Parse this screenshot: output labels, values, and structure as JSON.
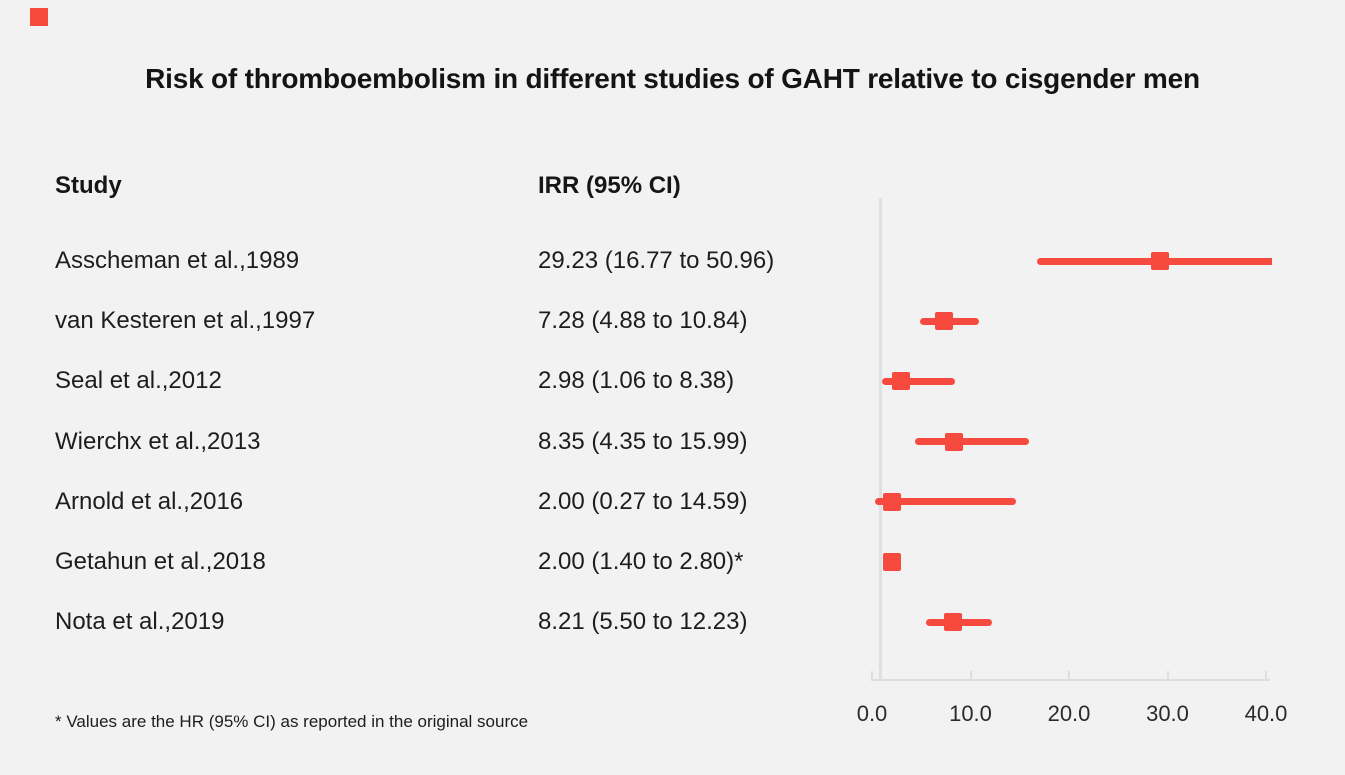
{
  "brand": {
    "square_color": "#f64a3e"
  },
  "title": "Risk of thromboembolism in different studies of GAHT relative to cisgender men",
  "table": {
    "study_header": "Study",
    "irr_header": "IRR (95% CI)"
  },
  "footnote": "* Values are the HR (95% CI) as reported in the original source",
  "chart_data": {
    "type": "forest",
    "title": "Risk of thromboembolism in different studies of GAHT relative to cisgender men",
    "xlabel": "",
    "ylabel": "",
    "xlim": [
      0,
      40
    ],
    "x_tick_values": [
      0,
      10,
      20,
      30,
      40
    ],
    "x_tick_labels": [
      "0.0",
      "10.0",
      "20.0",
      "30.0",
      "40.0"
    ],
    "reference_line": 1.0,
    "grid": false,
    "legend_position": "none",
    "studies": [
      {
        "label": "Asscheman et al.,1989",
        "irr_text": "29.23 (16.77 to 50.96)",
        "irr": 29.23,
        "ci_low": 16.77,
        "ci_high": 50.96
      },
      {
        "label": "van Kesteren et al.,1997",
        "irr_text": "7.28 (4.88 to 10.84)",
        "irr": 7.28,
        "ci_low": 4.88,
        "ci_high": 10.84
      },
      {
        "label": "Seal et al.,2012",
        "irr_text": "2.98 (1.06 to 8.38)",
        "irr": 2.98,
        "ci_low": 1.06,
        "ci_high": 8.38
      },
      {
        "label": "Wierchx et al.,2013",
        "irr_text": "8.35 (4.35 to 15.99)",
        "irr": 8.35,
        "ci_low": 4.35,
        "ci_high": 15.99
      },
      {
        "label": "Arnold et al.,2016",
        "irr_text": "2.00 (0.27 to 14.59)",
        "irr": 2.0,
        "ci_low": 0.27,
        "ci_high": 14.59
      },
      {
        "label": "Getahun et al.,2018",
        "irr_text": "2.00 (1.40 to 2.80)*",
        "irr": 2.0,
        "ci_low": 1.4,
        "ci_high": 2.8
      },
      {
        "label": "Nota et al.,2019",
        "irr_text": "8.21 (5.50 to 12.23)",
        "irr": 8.21,
        "ci_low": 5.5,
        "ci_high": 12.23
      }
    ],
    "colors": {
      "marker": "#f64a3e",
      "axis": "#d9dee3",
      "reference_line": "#dce1e6",
      "background": "#f2f2f2",
      "text": "#1b1b1b"
    }
  }
}
